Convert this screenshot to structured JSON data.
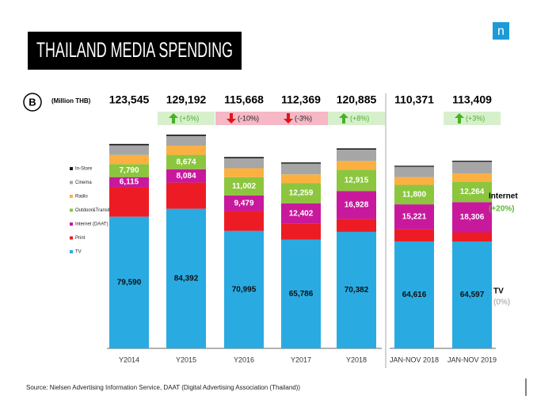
{
  "chart_data": {
    "type": "stacked_bar",
    "title": "THAILAND MEDIA SPENDING",
    "logo": "n",
    "panel_label": "B",
    "unit_label": "(Million THB)",
    "source": "Source: Nielsen Advertising Information Service, DAAT (Digital Advertising Association (Thailand))",
    "categories": [
      "Y2014",
      "Y2015",
      "Y2016",
      "Y2017",
      "Y2018",
      "JAN-NOV 2018",
      "JAN-NOV 2019"
    ],
    "totals": [
      123545,
      129192,
      115668,
      112369,
      120885,
      110371,
      113409
    ],
    "total_labels": [
      "123,545",
      "129,192",
      "115,668",
      "112,369",
      "120,885",
      "110,371",
      "113,409"
    ],
    "changes": [
      null,
      "(+5%)",
      "(-10%)",
      "(-3%)",
      "(+8%)",
      null,
      "(+3%)"
    ],
    "series": [
      {
        "name": "TV",
        "color": "#29abe2",
        "values": [
          79590,
          84392,
          70995,
          65786,
          70382,
          64616,
          64597
        ],
        "value_labels": [
          "79,590",
          "84,392",
          "70,995",
          "65,786",
          "70,382",
          "64,616",
          "64,597"
        ]
      },
      {
        "name": "Print",
        "color": "#ed1c24",
        "values": [
          17800,
          15800,
          12000,
          9500,
          7800,
          7200,
          5500
        ]
      },
      {
        "name": "Internet (DAAT)",
        "color": "#c8199c",
        "values": [
          6115,
          8084,
          9479,
          12402,
          16928,
          15221,
          18306
        ],
        "value_labels": [
          "6,115",
          "8,084",
          "9,479",
          "12,402",
          "16,928",
          "15,221",
          "18,306"
        ]
      },
      {
        "name": "Outdoor&Transit",
        "color": "#8cc63f",
        "values": [
          7790,
          8674,
          11002,
          12259,
          12915,
          11800,
          12264
        ],
        "value_labels": [
          "7,790",
          "8,674",
          "11,002",
          "12,259",
          "12,915",
          "11,800",
          "12,264"
        ]
      },
      {
        "name": "Radio",
        "color": "#fbb040",
        "values": [
          5600,
          5500,
          5400,
          5200,
          5200,
          4700,
          5000
        ]
      },
      {
        "name": "Cinema",
        "color": "#a6a6a6",
        "values": [
          5800,
          5900,
          6000,
          6500,
          6900,
          6200,
          7100
        ]
      },
      {
        "name": "In-Store",
        "color": "#1a1a1a",
        "values": [
          850,
          842,
          792,
          722,
          760,
          634,
          642
        ]
      }
    ],
    "annotations": [
      {
        "text": "Internet",
        "color": "#000000"
      },
      {
        "text": "(+20%)",
        "color": "#5cb82e"
      },
      {
        "text": "TV",
        "color": "#000000"
      },
      {
        "text": "(0%)",
        "color": "#999999"
      }
    ]
  }
}
